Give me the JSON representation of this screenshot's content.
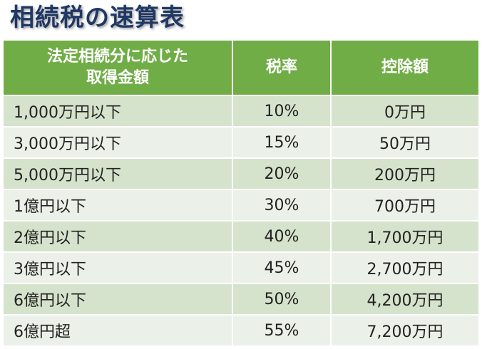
{
  "title": "相続税の速算表",
  "table": {
    "headers": {
      "amount_line1": "法定相続分に応じた",
      "amount_line2": "取得金額",
      "rate": "税率",
      "deduction": "控除額"
    },
    "rows": [
      {
        "amount": "1,000万円以下",
        "rate": "10%",
        "deduction": "0万円"
      },
      {
        "amount": "3,000万円以下",
        "rate": "15%",
        "deduction": "50万円"
      },
      {
        "amount": "5,000万円以下",
        "rate": "20%",
        "deduction": "200万円"
      },
      {
        "amount": "1億円以下",
        "rate": "30%",
        "deduction": "700万円"
      },
      {
        "amount": "2億円以下",
        "rate": "40%",
        "deduction": "1,700万円"
      },
      {
        "amount": "3億円以下",
        "rate": "45%",
        "deduction": "2,700万円"
      },
      {
        "amount": "6億円以下",
        "rate": "50%",
        "deduction": "4,200万円"
      },
      {
        "amount": "6億円超",
        "rate": "55%",
        "deduction": "7,200万円"
      }
    ]
  },
  "colors": {
    "title": "#1f3864",
    "header_bg": "#70ad47",
    "row_dark": "#d5e3cc",
    "row_light": "#ebf1e8"
  }
}
